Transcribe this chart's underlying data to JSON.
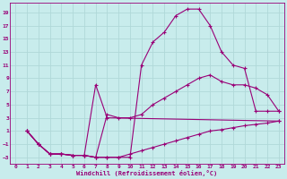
{
  "xlabel": "Windchill (Refroidissement éolien,°C)",
  "background_color": "#c8ecec",
  "grid_color": "#b0d8d8",
  "line_color": "#990077",
  "xlim": [
    -0.5,
    23.5
  ],
  "ylim": [
    -4,
    20.5
  ],
  "xticks": [
    0,
    1,
    2,
    3,
    4,
    5,
    6,
    7,
    8,
    9,
    10,
    11,
    12,
    13,
    14,
    15,
    16,
    17,
    18,
    19,
    20,
    21,
    22,
    23
  ],
  "yticks": [
    -3,
    -1,
    1,
    3,
    5,
    7,
    9,
    11,
    13,
    15,
    17,
    19
  ],
  "lines": [
    {
      "x": [
        1,
        2,
        3,
        4,
        5,
        6,
        7,
        8,
        9,
        10,
        11,
        12,
        13,
        14,
        15,
        16,
        17,
        18,
        19,
        20,
        21,
        22,
        23
      ],
      "y": [
        1,
        -1,
        -2.5,
        -2.5,
        -2.7,
        -2.7,
        -3,
        -3,
        -3,
        -3,
        11,
        14.5,
        16,
        18.5,
        19.5,
        19.5,
        17,
        13,
        11,
        10.5,
        4,
        4,
        4
      ]
    },
    {
      "x": [
        1,
        2,
        3,
        4,
        5,
        6,
        7,
        8,
        23
      ],
      "y": [
        1,
        -1,
        -2.5,
        -2.5,
        -2.7,
        -2.7,
        8,
        3,
        2.5
      ]
    },
    {
      "x": [
        1,
        2,
        3,
        4,
        5,
        6,
        7,
        8,
        9,
        10,
        11,
        12,
        13,
        14,
        15,
        16,
        17,
        18,
        19,
        20,
        21,
        22,
        23
      ],
      "y": [
        1,
        -1,
        -2.5,
        -2.5,
        -2.7,
        -2.7,
        -3,
        -3,
        -3,
        -2.5,
        -2,
        -1.5,
        -1,
        -0.5,
        0,
        0.5,
        1,
        1.2,
        1.5,
        1.8,
        2,
        2.2,
        2.5
      ]
    },
    {
      "x": [
        1,
        2,
        3,
        4,
        5,
        6,
        7,
        8,
        9,
        10,
        11,
        12,
        13,
        14,
        15,
        16,
        17,
        18,
        19,
        20,
        21,
        22,
        23
      ],
      "y": [
        1,
        -1,
        -2.5,
        -2.5,
        -2.7,
        -2.7,
        -3,
        3.5,
        3,
        3,
        3.5,
        5,
        6,
        7,
        8,
        9,
        9.5,
        8.5,
        8,
        8,
        7.5,
        6.5,
        4
      ]
    }
  ]
}
